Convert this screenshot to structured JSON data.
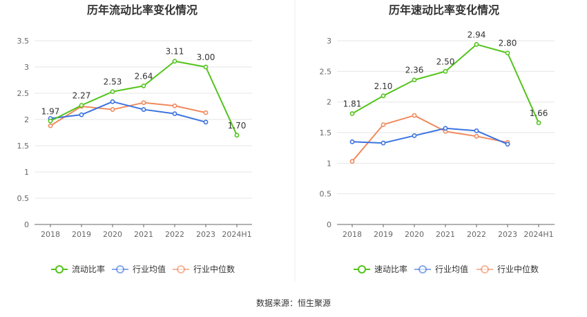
{
  "source": "数据来源：恒生聚源",
  "colors": {
    "main": "#52c41a",
    "avg": "#3b73e0",
    "median": "#f08a5d"
  },
  "chart_data": [
    {
      "type": "line",
      "title": "历年流动比率变化情况",
      "categories": [
        "2018",
        "2019",
        "2020",
        "2021",
        "2022",
        "2023",
        "2024H1"
      ],
      "yticks": [
        "0",
        "0.5",
        "1",
        "1.5",
        "2",
        "2.5",
        "3",
        "3.5"
      ],
      "ylim": [
        0,
        3.5
      ],
      "series": [
        {
          "name": "流动比率",
          "key": "main",
          "values": [
            1.97,
            2.27,
            2.53,
            2.64,
            3.11,
            3.0,
            1.7
          ],
          "labels": [
            "1.97",
            "2.27",
            "2.53",
            "2.64",
            "3.11",
            "3.00",
            "1.70"
          ]
        },
        {
          "name": "行业均值",
          "key": "avg",
          "values": [
            2.02,
            2.09,
            2.34,
            2.19,
            2.11,
            1.95,
            null
          ]
        },
        {
          "name": "行业中位数",
          "key": "median",
          "values": [
            1.88,
            2.25,
            2.19,
            2.32,
            2.26,
            2.13,
            null
          ]
        }
      ]
    },
    {
      "type": "line",
      "title": "历年速动比率变化情况",
      "categories": [
        "2018",
        "2019",
        "2020",
        "2021",
        "2022",
        "2023",
        "2024H1"
      ],
      "yticks": [
        "0",
        "0.5",
        "1",
        "1.5",
        "2",
        "2.5",
        "3"
      ],
      "ylim": [
        0,
        3
      ],
      "series": [
        {
          "name": "速动比率",
          "key": "main",
          "values": [
            1.81,
            2.1,
            2.36,
            2.5,
            2.94,
            2.8,
            1.66
          ],
          "labels": [
            "1.81",
            "2.10",
            "2.36",
            "2.50",
            "2.94",
            "2.80",
            "1.66"
          ]
        },
        {
          "name": "行业均值",
          "key": "avg",
          "values": [
            1.35,
            1.33,
            1.45,
            1.57,
            1.53,
            1.31,
            null
          ]
        },
        {
          "name": "行业中位数",
          "key": "median",
          "values": [
            1.03,
            1.63,
            1.78,
            1.52,
            1.44,
            1.34,
            null
          ]
        }
      ]
    }
  ]
}
